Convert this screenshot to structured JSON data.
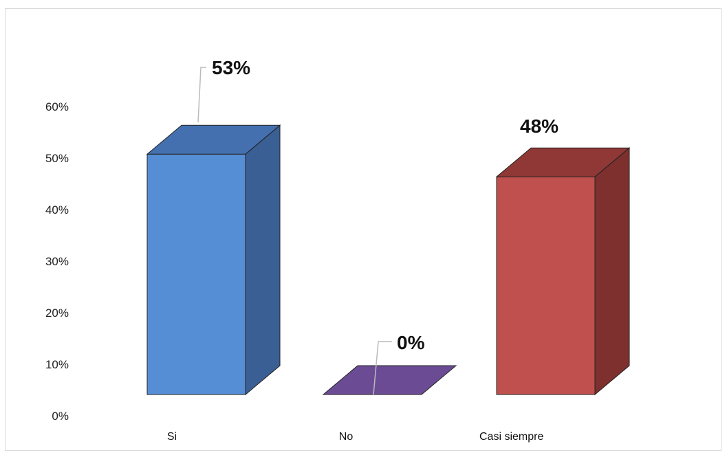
{
  "chart_data": {
    "type": "bar",
    "three_d": true,
    "categories": [
      "Si",
      "No",
      "Casi siempre"
    ],
    "values": [
      0.53,
      0.0,
      0.48
    ],
    "data_labels": [
      "53%",
      "0%",
      "48%"
    ],
    "y_ticks": [
      "0%",
      "10%",
      "20%",
      "30%",
      "40%",
      "50%",
      "60%"
    ],
    "ylim": [
      0,
      0.6
    ],
    "grid": false,
    "legend": "none",
    "colors": {
      "Si": {
        "front": "#558ed5",
        "side": "#3a5f94",
        "top": "#4470b0"
      },
      "No": {
        "front": "#6a4a8c",
        "side": "#4e3570",
        "top": "#6b4b94"
      },
      "Casi siempre": {
        "front": "#c0504d",
        "side": "#7e302e",
        "top": "#8f3836"
      }
    }
  }
}
